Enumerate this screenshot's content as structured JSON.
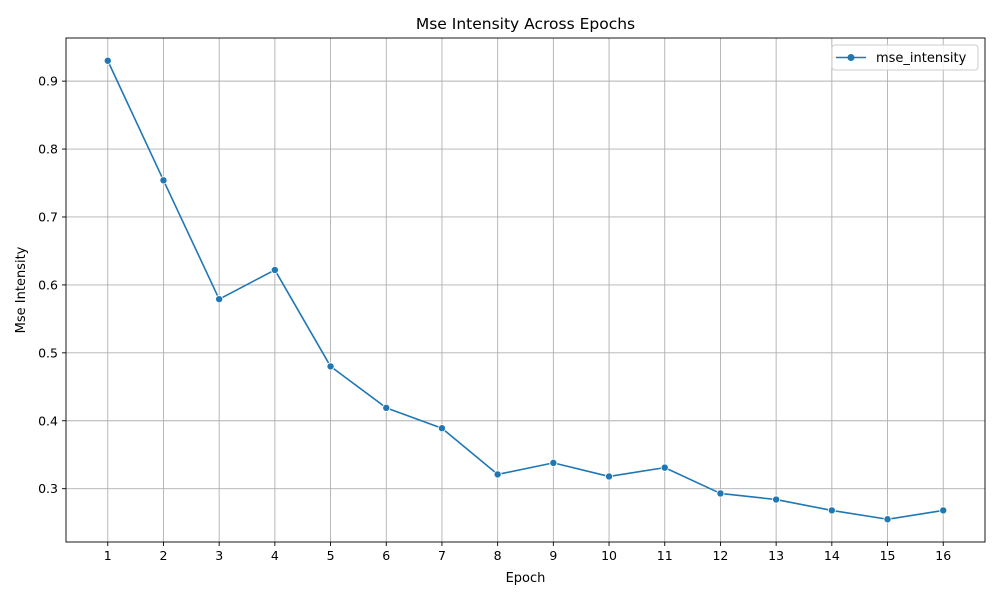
{
  "chart_data": {
    "type": "line",
    "title": "Mse Intensity Across Epochs",
    "xlabel": "Epoch",
    "ylabel": "Mse Intensity",
    "x": [
      1,
      2,
      3,
      4,
      5,
      6,
      7,
      8,
      9,
      10,
      11,
      12,
      13,
      14,
      15,
      16
    ],
    "x_tick_labels": [
      "1",
      "2",
      "3",
      "4",
      "5",
      "6",
      "7",
      "8",
      "9",
      "10",
      "11",
      "12",
      "13",
      "14",
      "15",
      "16"
    ],
    "y_ticks": [
      0.3,
      0.4,
      0.5,
      0.6,
      0.7,
      0.8,
      0.9
    ],
    "y_tick_labels": [
      "0.3",
      "0.4",
      "0.5",
      "0.6",
      "0.7",
      "0.8",
      "0.9"
    ],
    "xlim": [
      0.25,
      16.75
    ],
    "ylim": [
      0.2215,
      0.9635
    ],
    "grid": true,
    "legend_position": "top-right",
    "series": [
      {
        "name": "mse_intensity",
        "color": "#1f77b4",
        "marker": "circle",
        "values": [
          0.93,
          0.754,
          0.579,
          0.622,
          0.48,
          0.419,
          0.389,
          0.321,
          0.338,
          0.318,
          0.331,
          0.293,
          0.284,
          0.268,
          0.255,
          0.268
        ]
      }
    ]
  }
}
